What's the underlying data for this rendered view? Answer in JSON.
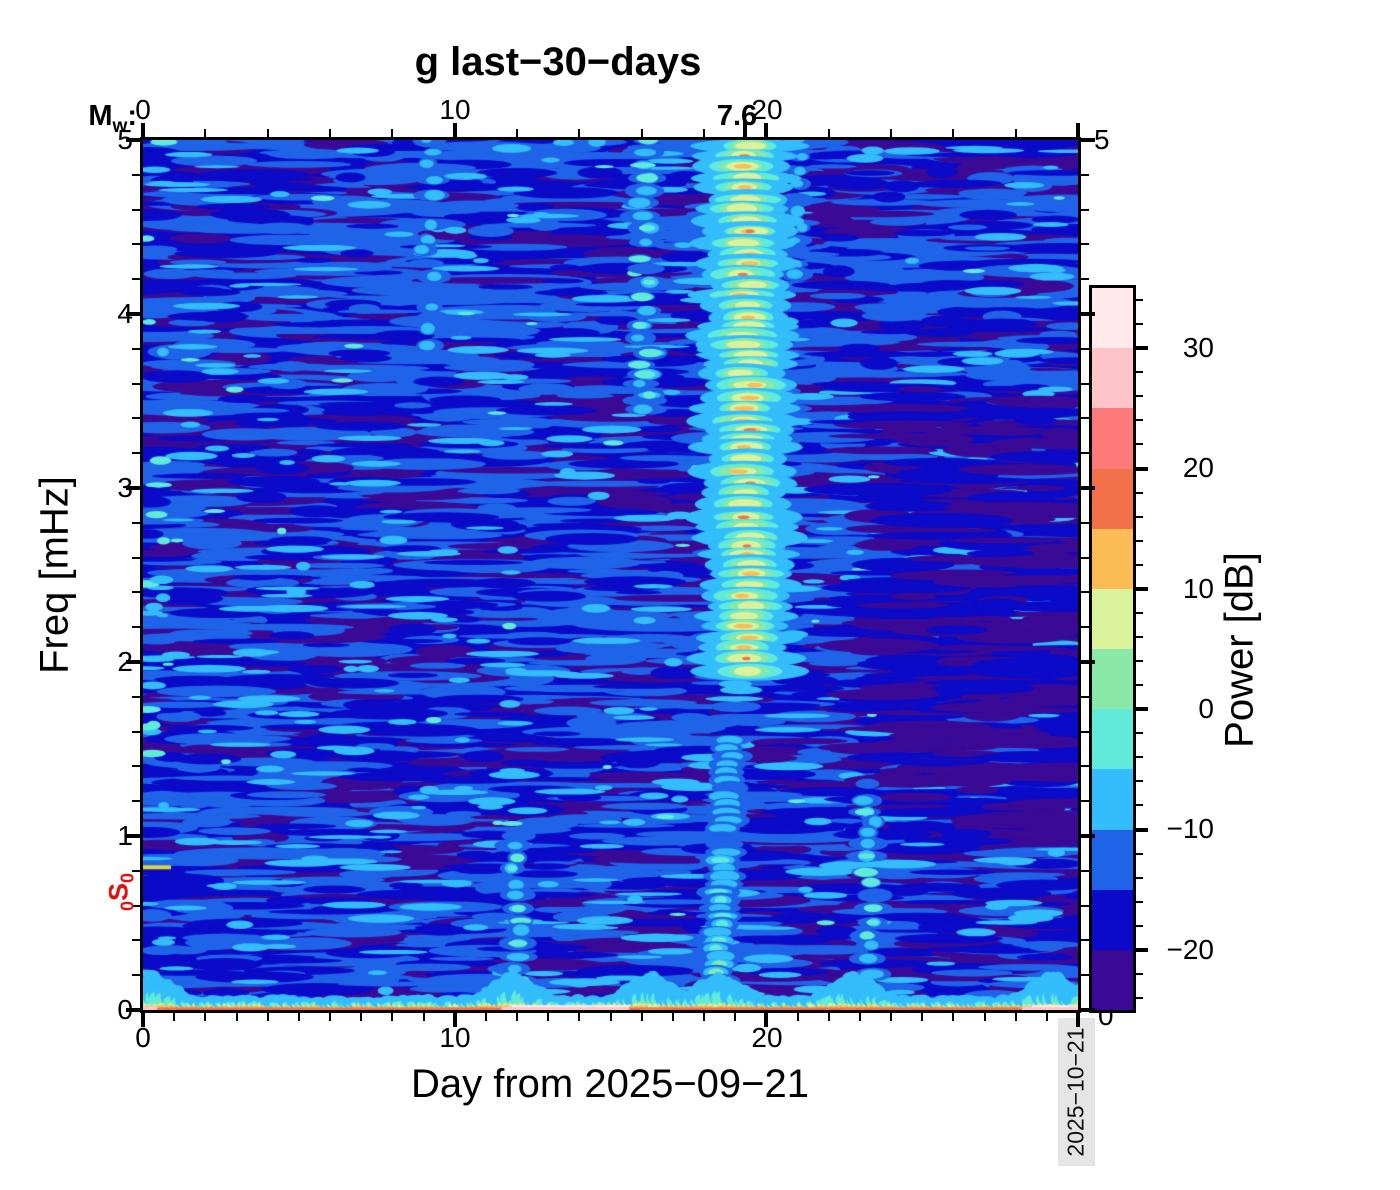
{
  "title": "g last−30−days",
  "top_axis": {
    "mw": {
      "main": "M",
      "sub": "w",
      "colon": ":"
    },
    "ticks": [
      "0",
      "10",
      "20"
    ],
    "event": {
      "label": "7.6",
      "day": 19.3
    }
  },
  "axes": {
    "x": {
      "label": "Day from 2025−09−21",
      "ticks": [
        "0",
        "10",
        "20"
      ],
      "tick_days": [
        0,
        10,
        20
      ],
      "minor_step_days": 1,
      "range_days": [
        0,
        30
      ]
    },
    "y": {
      "label": "Freq [mHz]",
      "ticks": [
        "0",
        "1",
        "2",
        "3",
        "4",
        "5"
      ],
      "minor_step_mhz": 0.2,
      "range_mhz": [
        0,
        5
      ]
    },
    "y_right": {
      "ticks": [
        "5",
        "0"
      ]
    }
  },
  "mode_label": {
    "prefix": "0",
    "letter": "S",
    "suffix": "0",
    "freq_mhz": 0.82,
    "color": "#e01010",
    "line_color": "#ddd832"
  },
  "colorbar": {
    "label": "Power [dB]",
    "tick_labels": [
      "30",
      "20",
      "10",
      "0",
      "−10",
      "−20"
    ],
    "tick_values": [
      30,
      20,
      10,
      0,
      -10,
      -20
    ],
    "minor_step_db": 2,
    "range_db": [
      -25,
      35
    ],
    "band_step_db": 5,
    "band_colors_low_to_high": [
      "#3a0a96",
      "#0a0ac8",
      "#1f64e8",
      "#33bdfc",
      "#60eada",
      "#8ae8a8",
      "#dcf29a",
      "#fcbc55",
      "#f2714a",
      "#fc7a7a",
      "#ffc4c8",
      "#ffe9ec"
    ]
  },
  "stamp": {
    "date": "2025−10−21",
    "bg_color": "#e5e5e5"
  },
  "chart_data": {
    "type": "heatmap",
    "subtype": "spectrogram",
    "title": "g last−30−days",
    "xlabel": "Day from 2025−09−21",
    "ylabel": "Freq [mHz]",
    "zlabel": "Power [dB]",
    "xlim": [
      0,
      30
    ],
    "ylim": [
      0,
      5
    ],
    "zlim": [
      -25,
      35
    ],
    "background_power_db": [
      -22,
      -12
    ],
    "features": [
      {
        "name": "quiet patch",
        "day_range": [
          23.5,
          30
        ],
        "freq_mhz": [
          1.0,
          3.6
        ],
        "power_db": [
          -24,
          -16
        ]
      },
      {
        "name": "faint stripe",
        "day": 9.2,
        "width_days": 0.6,
        "freq_mhz": [
          3.8,
          5.0
        ],
        "power_db": [
          -10,
          -7
        ]
      },
      {
        "name": "faint stripe",
        "day": 12.0,
        "width_days": 0.7,
        "freq_mhz": [
          0.1,
          1.0
        ],
        "power_db": [
          -9,
          -5
        ]
      },
      {
        "name": "faint stripe",
        "day": 16.1,
        "width_days": 0.7,
        "freq_mhz": [
          3.4,
          5.0
        ],
        "power_db": [
          -8,
          -4
        ]
      },
      {
        "name": "faint stripe",
        "day": 21.0,
        "width_days": 0.6,
        "freq_mhz": [
          4.2,
          5.0
        ],
        "power_db": [
          -9,
          -6
        ]
      },
      {
        "name": "faint stripe",
        "day": 23.3,
        "width_days": 0.7,
        "freq_mhz": [
          0.1,
          1.3
        ],
        "power_db": [
          -9,
          -5
        ]
      },
      {
        "name": "earthquake mode stripe",
        "day": 19.35,
        "width_days": 1.5,
        "freq_mhz": [
          1.9,
          5.0
        ],
        "power_db": [
          0,
          17
        ],
        "note": "Mw 7.6 event, bright band with discrete orange mode peaks"
      },
      {
        "name": "earthquake stripe low tail",
        "day_start": 18.85,
        "day_end": 18.3,
        "freq_mhz": [
          0.0,
          1.55
        ],
        "power_db": [
          -8,
          0
        ]
      },
      {
        "name": "hum band",
        "day_range": [
          0,
          30
        ],
        "freq_mhz": [
          0.0,
          0.15
        ],
        "power_db": [
          5,
          27
        ],
        "bumps_days": [
          0.3,
          11.9,
          16.3,
          18.5,
          22.8,
          29.2
        ],
        "pink_segments_days": [
          [
            0,
            0.45
          ],
          [
            11.5,
            15.6
          ],
          [
            28.2,
            30
          ]
        ]
      },
      {
        "name": "0S0 line",
        "freq_mhz": 0.82,
        "day_range": [
          0,
          0.9
        ],
        "power_db": 8
      }
    ]
  }
}
